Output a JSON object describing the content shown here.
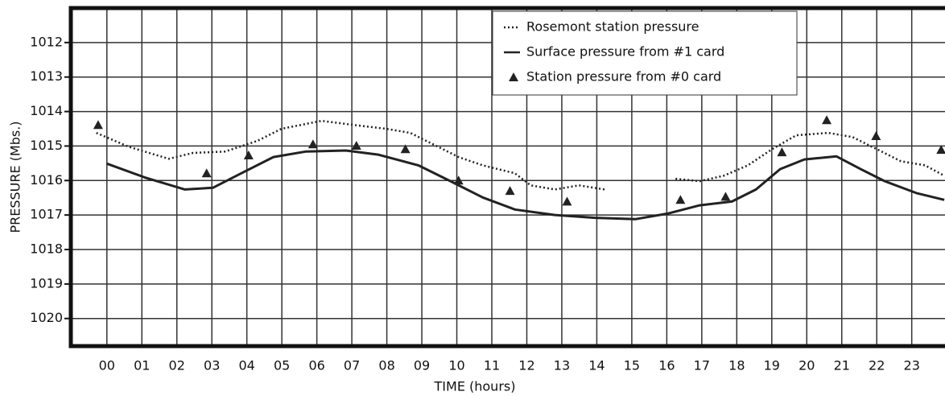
{
  "chart_data": {
    "type": "line",
    "xlabel": "TIME (hours)",
    "ylabel": "PRESSURE (Mbs.)",
    "xlim": [
      -1.03,
      23.95
    ],
    "ylim": [
      1020.8,
      1011.0
    ],
    "y_inverted": true,
    "grid": true,
    "legend": "upper right",
    "xticks": [
      {
        "value": 0,
        "label": "00"
      },
      {
        "value": 1,
        "label": "01"
      },
      {
        "value": 2,
        "label": "02"
      },
      {
        "value": 3,
        "label": "03"
      },
      {
        "value": 4,
        "label": "04"
      },
      {
        "value": 5,
        "label": "05"
      },
      {
        "value": 6,
        "label": "06"
      },
      {
        "value": 7,
        "label": "07"
      },
      {
        "value": 8,
        "label": "08"
      },
      {
        "value": 9,
        "label": "09"
      },
      10,
      11,
      12,
      13,
      14,
      15,
      16,
      17,
      18,
      19,
      20,
      21,
      22,
      23
    ],
    "yticks": [
      1012,
      1013,
      1014,
      1015,
      1016,
      1017,
      1018,
      1019,
      1020
    ],
    "series": [
      {
        "name": "Rosemont  station pressure",
        "style": "dotted",
        "color": "#222",
        "x": [
          -0.3,
          0.62,
          1.77,
          2.46,
          3.38,
          4.3,
          4.99,
          6.14,
          7.06,
          7.98,
          8.67,
          9.36,
          10.05,
          10.74,
          11.66,
          12.11,
          12.8,
          13.49,
          14.23,
          15.3,
          16.25,
          16.94,
          17.63,
          18.32,
          19.01,
          19.7,
          20.62,
          21.31,
          22.0,
          22.69,
          23.38,
          23.93
        ],
        "values": [
          1014.62,
          1015.02,
          1015.37,
          1015.2,
          1015.16,
          1014.85,
          1014.5,
          1014.27,
          1014.39,
          1014.5,
          1014.62,
          1014.97,
          1015.32,
          1015.56,
          1015.79,
          1016.14,
          1016.26,
          1016.14,
          1016.26,
          null,
          1015.95,
          1016.02,
          1015.86,
          1015.56,
          1015.09,
          1014.69,
          1014.62,
          1014.74,
          1015.09,
          1015.44,
          1015.56,
          1015.86
        ]
      },
      {
        "name": "Surface pressure from #1 card",
        "style": "solid",
        "color": "#222",
        "x": [
          0,
          1.08,
          2.23,
          3.03,
          3.84,
          4.76,
          5.68,
          6.83,
          7.75,
          8.9,
          9.82,
          10.74,
          11.66,
          12.8,
          13.95,
          15.1,
          16.02,
          16.94,
          17.86,
          18.55,
          19.24,
          19.93,
          20.85,
          21.54,
          22.23,
          23.15,
          23.93
        ],
        "values": [
          1015.51,
          1015.91,
          1016.26,
          1016.21,
          1015.79,
          1015.32,
          1015.16,
          1015.13,
          1015.25,
          1015.56,
          1016.02,
          1016.49,
          1016.84,
          1017.0,
          1017.08,
          1017.12,
          1016.96,
          1016.72,
          1016.61,
          1016.26,
          1015.67,
          1015.39,
          1015.3,
          1015.67,
          1016.02,
          1016.37,
          1016.56
        ]
      },
      {
        "name": "Station pressure from #0 card",
        "style": "triangle",
        "color": "#222",
        "x": [
          -0.25,
          2.85,
          4.05,
          5.89,
          7.13,
          8.53,
          10.05,
          11.52,
          13.15,
          16.39,
          17.68,
          19.29,
          20.57,
          21.98,
          23.84
        ],
        "values": [
          1014.39,
          1015.79,
          1015.27,
          1014.95,
          1014.99,
          1015.09,
          1016.0,
          1016.3,
          1016.61,
          1016.56,
          1016.47,
          1015.18,
          1014.25,
          1014.71,
          1015.11
        ]
      }
    ]
  }
}
